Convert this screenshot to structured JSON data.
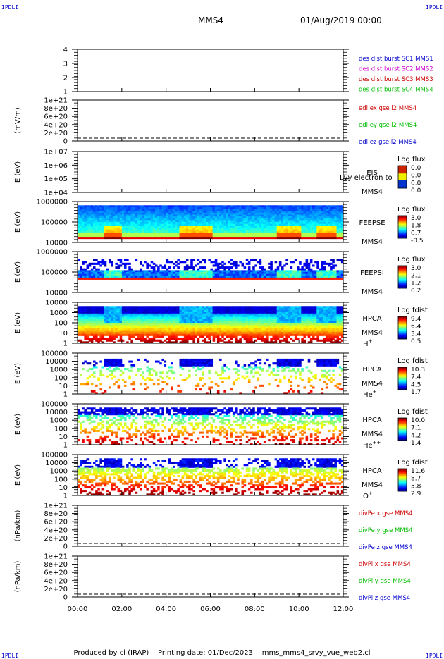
{
  "corners": {
    "tl": "IPDLI",
    "tr": "IPDLI",
    "bl": "IPDLI",
    "br": "IPDLI"
  },
  "header": {
    "spacecraft": "MMS4",
    "datetime": "01/Aug/2019 00:00"
  },
  "footer": {
    "producer": "Produced by cl (IRAP)",
    "printing": "Printing date: 01/Dec/2023",
    "file": "mms_mms4_srvy_vue_web2.cl"
  },
  "colors": {
    "blue": "#0000cc",
    "magenta": "#cc00cc",
    "red": "#cc0000",
    "green": "#00bb00"
  },
  "chart_data": [
    {
      "type": "line",
      "id": "des-burst",
      "ylabel": "",
      "scale": "linear",
      "ylim": [
        0.5,
        4.5
      ],
      "ticks": [
        "4",
        "3",
        "2",
        "1"
      ],
      "dashed_zero": false,
      "legend": [
        {
          "text": "des dist burst SC1 MMS1",
          "color": "blue"
        },
        {
          "text": "des dist burst SC2 MMS2",
          "color": "magenta"
        },
        {
          "text": "des dist burst SC3 MMS3",
          "color": "red"
        },
        {
          "text": "des dist burst SC4 MMS4",
          "color": "green"
        }
      ]
    },
    {
      "type": "line",
      "id": "edi-e",
      "ylabel": "(mV/m)",
      "scale": "linear",
      "ylim": [
        0,
        1e+21
      ],
      "ticks": [
        "1e+21",
        "8e+20",
        "6e+20",
        "4e+20",
        "2e+20",
        "0"
      ],
      "dashed_zero": true,
      "legend": [
        {
          "text": "edi ex gse l2 MMS4",
          "color": "red"
        },
        {
          "text": "edi ey gse l2 MMS4",
          "color": "green"
        },
        {
          "text": "edi ez gse l2 MMS4",
          "color": "blue"
        }
      ]
    },
    {
      "type": "heatmap",
      "id": "eis",
      "ylabel": "E (eV)",
      "scale": "log",
      "ylim": [
        10000.0,
        10000000.0
      ],
      "ticks": [
        "1e+07",
        "1e+06",
        "1e+05",
        "1e+04"
      ],
      "instrument": [
        "EIS",
        "MMS4"
      ],
      "overlay_text": "Lvy electron to",
      "empty": true,
      "colorbar": {
        "title": "Log flux",
        "labels": [
          "0.0",
          "0.0",
          "0.0",
          "0.0"
        ]
      }
    },
    {
      "type": "heatmap",
      "id": "feepse",
      "ylabel": "E (eV)",
      "scale": "log",
      "ylim": [
        10000.0,
        1000000.0
      ],
      "ticks": [
        "1000000",
        "100000",
        "10000"
      ],
      "instrument": [
        "FEEPSE",
        "MMS4"
      ],
      "colorbar": {
        "title": "Log flux",
        "labels": [
          "3.0",
          "1.8",
          "0.7",
          "-0.5"
        ]
      }
    },
    {
      "type": "heatmap",
      "id": "feepsi",
      "ylabel": "E (eV)",
      "scale": "log",
      "ylim": [
        10000.0,
        1000000.0
      ],
      "ticks": [
        "1000000",
        "100000",
        "10000"
      ],
      "instrument": [
        "FEEPSI",
        "MMS4"
      ],
      "colorbar": {
        "title": "Log flux",
        "labels": [
          "3.0",
          "2.1",
          "1.2",
          "0.2"
        ]
      }
    },
    {
      "type": "heatmap",
      "id": "hpca-h",
      "ylabel": "E (eV)",
      "scale": "log",
      "ylim": [
        1,
        10000.0
      ],
      "ticks": [
        "10000",
        "1000",
        "100",
        "10",
        "1"
      ],
      "instrument": [
        "HPCA",
        "MMS4"
      ],
      "species": "H",
      "charge": "+",
      "colorbar": {
        "title": "Log fdist",
        "labels": [
          "9.4",
          "6.4",
          "3.4",
          "0.5"
        ]
      }
    },
    {
      "type": "heatmap",
      "id": "hpca-he",
      "ylabel": "E (eV)",
      "scale": "log",
      "ylim": [
        1,
        100000.0
      ],
      "ticks": [
        "100000",
        "10000",
        "1000",
        "100",
        "10",
        "1"
      ],
      "instrument": [
        "HPCA",
        "MMS4"
      ],
      "species": "He",
      "charge": "+",
      "colorbar": {
        "title": "Log fdist",
        "labels": [
          "10.3",
          "7.4",
          "4.5",
          "1.7"
        ]
      }
    },
    {
      "type": "heatmap",
      "id": "hpca-hepp",
      "ylabel": "E (eV)",
      "scale": "log",
      "ylim": [
        1,
        100000.0
      ],
      "ticks": [
        "100000",
        "10000",
        "1000",
        "100",
        "10",
        "1"
      ],
      "instrument": [
        "HPCA",
        "MMS4"
      ],
      "species": "He",
      "charge": "++",
      "colorbar": {
        "title": "Log fdist",
        "labels": [
          "10.0",
          "7.1",
          "4.2",
          "1.4"
        ]
      }
    },
    {
      "type": "heatmap",
      "id": "hpca-o",
      "ylabel": "E (eV)",
      "scale": "log",
      "ylim": [
        1,
        100000.0
      ],
      "ticks": [
        "100000",
        "10000",
        "1000",
        "100",
        "10",
        "1"
      ],
      "instrument": [
        "HPCA",
        "MMS4"
      ],
      "species": "O",
      "charge": "+",
      "colorbar": {
        "title": "Log fdist",
        "labels": [
          "11.6",
          "8.7",
          "5.8",
          "2.9"
        ]
      }
    },
    {
      "type": "line",
      "id": "divpe",
      "ylabel": "(nPa/km)",
      "scale": "linear",
      "ylim": [
        0,
        1e+21
      ],
      "ticks": [
        "1e+21",
        "8e+20",
        "6e+20",
        "4e+20",
        "2e+20",
        "0"
      ],
      "dashed_zero": true,
      "legend": [
        {
          "text": "divPe x gse MMS4",
          "color": "red"
        },
        {
          "text": "divPe y gse MMS4",
          "color": "green"
        },
        {
          "text": "divPe z gse MMS4",
          "color": "blue"
        }
      ]
    },
    {
      "type": "line",
      "id": "divpi",
      "ylabel": "(nPa/km)",
      "scale": "linear",
      "ylim": [
        0,
        1e+21
      ],
      "ticks": [
        "1e+21",
        "8e+20",
        "6e+20",
        "4e+20",
        "2e+20",
        "0"
      ],
      "dashed_zero": true,
      "legend": [
        {
          "text": "divPi x gse MMS4",
          "color": "red"
        },
        {
          "text": "divPi y gse MMS4",
          "color": "green"
        },
        {
          "text": "divPi z gse MMS4",
          "color": "blue"
        }
      ]
    }
  ],
  "time_axis": {
    "ticks": [
      "00:00",
      "02:00",
      "04:00",
      "06:00",
      "08:00",
      "10:00",
      "12:00"
    ]
  }
}
